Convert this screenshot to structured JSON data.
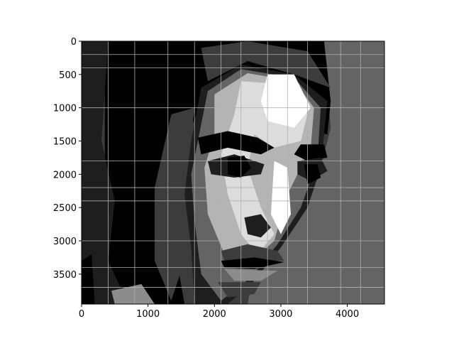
{
  "chart_data": {
    "type": "heatmap",
    "title": "",
    "xlabel": "",
    "ylabel": "",
    "xlim": [
      0,
      4560
    ],
    "ylim": [
      3950,
      0
    ],
    "grid": true,
    "grid_x": [
      0,
      400,
      800,
      1300,
      1700,
      2100,
      2400,
      2800,
      3100,
      3400,
      3900,
      4200,
      4560
    ],
    "grid_y": [
      200,
      400,
      1000,
      1800,
      2200,
      2400,
      3000,
      3400,
      3700
    ],
    "xticks": [
      0,
      1000,
      2000,
      3000,
      4000
    ],
    "yticks": [
      0,
      500,
      1000,
      1500,
      2000,
      2500,
      3000,
      3500
    ],
    "colormap": "gray",
    "levels": [
      "#000000",
      "#1e1e1e",
      "#3c3c3c",
      "#646464",
      "#8c8c8c",
      "#b4b4b4",
      "#dcdcdc",
      "#ffffff"
    ],
    "regions": [
      {
        "name": "background-right",
        "level": 3,
        "points": [
          [
            3650,
            0
          ],
          [
            4560,
            0
          ],
          [
            4560,
            3950
          ],
          [
            2500,
            3950
          ],
          [
            2600,
            3400
          ],
          [
            3000,
            3100
          ],
          [
            3400,
            2500
          ],
          [
            3600,
            1900
          ],
          [
            3750,
            1300
          ]
        ]
      },
      {
        "name": "hair-dark",
        "level": 0,
        "points": [
          [
            350,
            0
          ],
          [
            3650,
            0
          ],
          [
            3750,
            900
          ],
          [
            3700,
            1400
          ],
          [
            3100,
            1300
          ],
          [
            2600,
            900
          ],
          [
            2300,
            500
          ],
          [
            1900,
            700
          ],
          [
            1650,
            1300
          ],
          [
            1350,
            2200
          ],
          [
            1400,
            3100
          ],
          [
            1550,
            3950
          ],
          [
            350,
            3950
          ],
          [
            350,
            2000
          ]
        ]
      },
      {
        "name": "hair-left-shade",
        "level": 1,
        "points": [
          [
            0,
            0
          ],
          [
            400,
            0
          ],
          [
            300,
            1500
          ],
          [
            500,
            2400
          ],
          [
            400,
            3300
          ],
          [
            700,
            3950
          ],
          [
            0,
            3950
          ]
        ]
      },
      {
        "name": "left-edge-dark",
        "level": 0,
        "points": [
          [
            0,
            3300
          ],
          [
            150,
            3200
          ],
          [
            200,
            3950
          ],
          [
            0,
            3950
          ]
        ]
      },
      {
        "name": "hair-mid",
        "level": 2,
        "points": [
          [
            1350,
            1100
          ],
          [
            1700,
            1000
          ],
          [
            1600,
            1900
          ],
          [
            1500,
            2600
          ],
          [
            1550,
            3300
          ],
          [
            1350,
            3900
          ],
          [
            1100,
            3300
          ],
          [
            1100,
            2200
          ]
        ]
      },
      {
        "name": "hair-top",
        "level": 2,
        "points": [
          [
            1800,
            100
          ],
          [
            2500,
            0
          ],
          [
            3400,
            150
          ],
          [
            3750,
            700
          ],
          [
            3200,
            500
          ],
          [
            2500,
            300
          ],
          [
            1900,
            600
          ]
        ]
      },
      {
        "name": "chin-hair-glint",
        "level": 4,
        "points": [
          [
            450,
            3750
          ],
          [
            900,
            3650
          ],
          [
            1100,
            3950
          ],
          [
            500,
            3950
          ]
        ]
      },
      {
        "name": "face-dark-outline",
        "level": 1,
        "points": [
          [
            1800,
            700
          ],
          [
            2400,
            350
          ],
          [
            3200,
            500
          ],
          [
            3700,
            900
          ],
          [
            3600,
            1900
          ],
          [
            3400,
            2500
          ],
          [
            3000,
            3100
          ],
          [
            2600,
            3600
          ],
          [
            2200,
            3950
          ],
          [
            1700,
            3950
          ],
          [
            1650,
            3100
          ],
          [
            1550,
            2300
          ],
          [
            1650,
            1500
          ]
        ]
      },
      {
        "name": "face-gray",
        "level": 3,
        "points": [
          [
            1900,
            750
          ],
          [
            2400,
            420
          ],
          [
            3200,
            550
          ],
          [
            3600,
            1000
          ],
          [
            3550,
            1800
          ],
          [
            3300,
            2500
          ],
          [
            2950,
            3050
          ],
          [
            2550,
            3550
          ],
          [
            2100,
            3900
          ],
          [
            1800,
            3500
          ],
          [
            1700,
            2700
          ],
          [
            1650,
            2000
          ],
          [
            1750,
            1500
          ]
        ]
      },
      {
        "name": "face-light",
        "level": 5,
        "points": [
          [
            2000,
            800
          ],
          [
            2500,
            480
          ],
          [
            3200,
            600
          ],
          [
            3500,
            1000
          ],
          [
            3450,
            1600
          ],
          [
            3100,
            2300
          ],
          [
            2900,
            3000
          ],
          [
            2450,
            3400
          ],
          [
            2150,
            3200
          ],
          [
            1900,
            2600
          ],
          [
            1850,
            1900
          ],
          [
            2000,
            1400
          ]
        ]
      },
      {
        "name": "face-lighter",
        "level": 6,
        "points": [
          [
            2400,
            600
          ],
          [
            3100,
            650
          ],
          [
            3400,
            1100
          ],
          [
            3300,
            1500
          ],
          [
            2900,
            1600
          ],
          [
            2600,
            1400
          ],
          [
            2500,
            1900
          ],
          [
            2700,
            2500
          ],
          [
            2900,
            2900
          ],
          [
            2650,
            3200
          ],
          [
            2400,
            2900
          ],
          [
            2200,
            2300
          ],
          [
            2100,
            1700
          ],
          [
            2300,
            1100
          ]
        ]
      },
      {
        "name": "forehead-highlight",
        "level": 7,
        "points": [
          [
            2800,
            500
          ],
          [
            3200,
            500
          ],
          [
            3450,
            1000
          ],
          [
            3200,
            1300
          ],
          [
            2800,
            1200
          ],
          [
            2700,
            900
          ]
        ]
      },
      {
        "name": "nose-highlight",
        "level": 7,
        "points": [
          [
            2900,
            1800
          ],
          [
            3100,
            1900
          ],
          [
            3150,
            2600
          ],
          [
            3000,
            2900
          ],
          [
            2850,
            2600
          ]
        ]
      },
      {
        "name": "left-eyebrow",
        "level": 0,
        "points": [
          [
            1750,
            1450
          ],
          [
            2200,
            1350
          ],
          [
            2650,
            1450
          ],
          [
            2900,
            1600
          ],
          [
            2700,
            1700
          ],
          [
            2200,
            1600
          ],
          [
            1800,
            1700
          ]
        ]
      },
      {
        "name": "right-eyebrow",
        "level": 0,
        "points": [
          [
            3300,
            1550
          ],
          [
            3650,
            1550
          ],
          [
            3700,
            1750
          ],
          [
            3400,
            1800
          ],
          [
            3200,
            1700
          ]
        ]
      },
      {
        "name": "left-eye",
        "level": 1,
        "points": [
          [
            1900,
            1800
          ],
          [
            2300,
            1700
          ],
          [
            2750,
            1850
          ],
          [
            2700,
            2000
          ],
          [
            2300,
            2050
          ],
          [
            1950,
            2000
          ]
        ]
      },
      {
        "name": "left-eye-iris",
        "level": 0,
        "points": [
          [
            2200,
            1750
          ],
          [
            2450,
            1720
          ],
          [
            2550,
            1900
          ],
          [
            2400,
            2050
          ],
          [
            2200,
            2000
          ]
        ]
      },
      {
        "name": "right-eye",
        "level": 1,
        "points": [
          [
            3250,
            1800
          ],
          [
            3600,
            1750
          ],
          [
            3700,
            1950
          ],
          [
            3450,
            2100
          ],
          [
            3250,
            2000
          ]
        ]
      },
      {
        "name": "right-eye-iris",
        "level": 0,
        "points": [
          [
            3350,
            1850
          ],
          [
            3550,
            1850
          ],
          [
            3600,
            2050
          ],
          [
            3400,
            2150
          ]
        ]
      },
      {
        "name": "nostril-shadow",
        "level": 1,
        "points": [
          [
            2450,
            2650
          ],
          [
            2700,
            2600
          ],
          [
            2850,
            2800
          ],
          [
            2700,
            2950
          ],
          [
            2500,
            2900
          ]
        ]
      },
      {
        "name": "upper-lip",
        "level": 2,
        "points": [
          [
            2100,
            3150
          ],
          [
            2500,
            3050
          ],
          [
            2950,
            3150
          ],
          [
            3050,
            3300
          ],
          [
            2600,
            3300
          ],
          [
            2150,
            3300
          ]
        ]
      },
      {
        "name": "mouth-line",
        "level": 0,
        "points": [
          [
            2100,
            3300
          ],
          [
            2600,
            3250
          ],
          [
            3050,
            3320
          ],
          [
            2600,
            3420
          ],
          [
            2150,
            3400
          ]
        ]
      },
      {
        "name": "lower-lip",
        "level": 4,
        "points": [
          [
            2150,
            3420
          ],
          [
            2600,
            3440
          ],
          [
            2950,
            3450
          ],
          [
            2700,
            3600
          ],
          [
            2300,
            3600
          ]
        ]
      },
      {
        "name": "chin-shadow",
        "level": 2,
        "points": [
          [
            2050,
            3620
          ],
          [
            2700,
            3620
          ],
          [
            2600,
            3800
          ],
          [
            2200,
            3850
          ]
        ]
      }
    ]
  }
}
